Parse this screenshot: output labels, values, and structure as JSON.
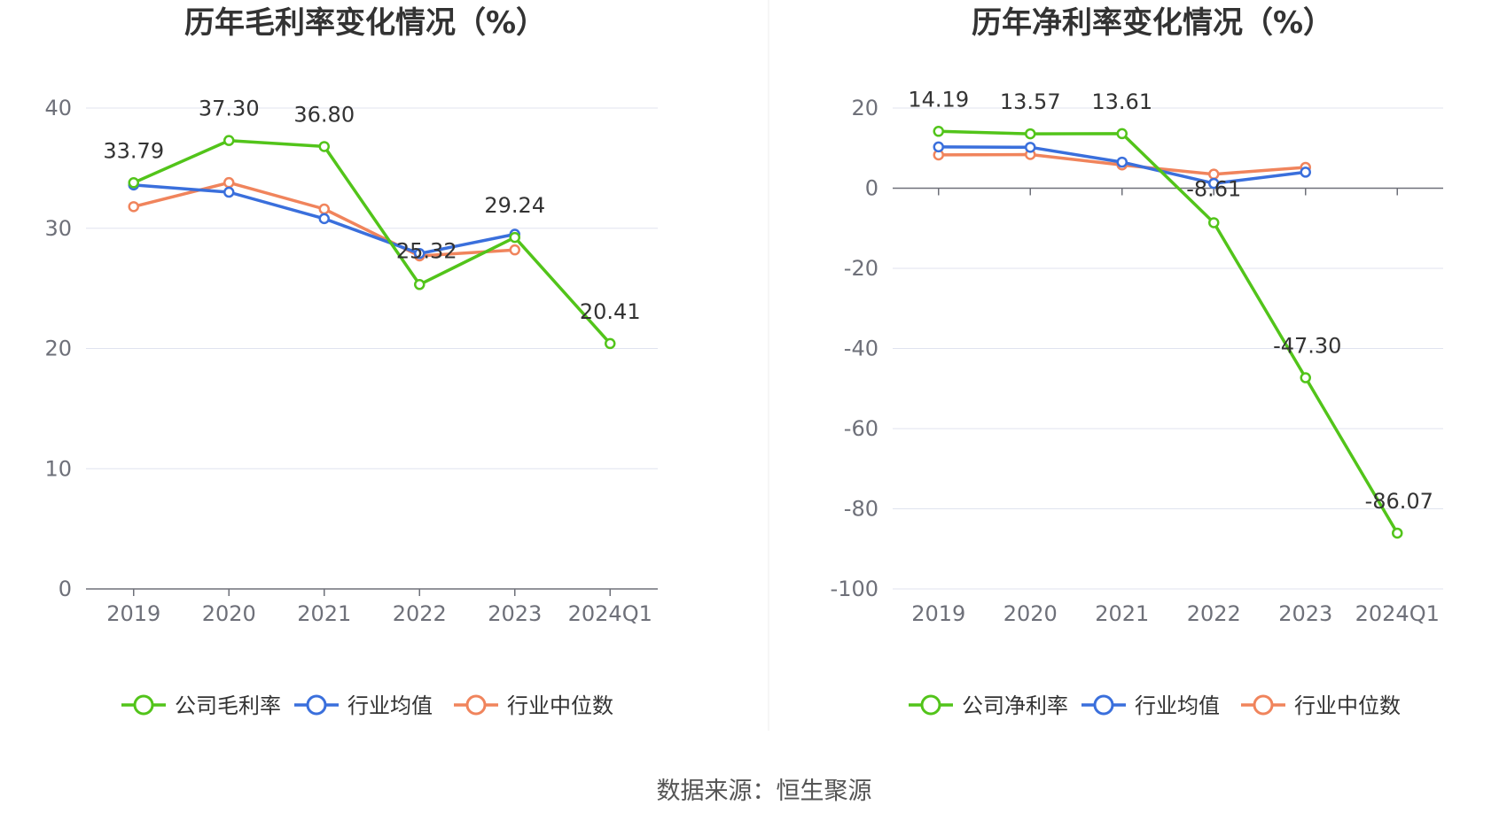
{
  "source": "数据来源：恒生聚源",
  "chart_data": [
    {
      "type": "line",
      "title": "历年毛利率变化情况（%）",
      "categories": [
        "2019",
        "2020",
        "2021",
        "2022",
        "2023",
        "2024Q1"
      ],
      "ylim": [
        0,
        40
      ],
      "yticks": [
        0,
        10,
        20,
        30,
        40
      ],
      "grid": true,
      "legend_position": "bottom",
      "series": [
        {
          "name": "公司毛利率",
          "color": "#52c41a",
          "values": [
            33.79,
            37.3,
            36.8,
            25.32,
            29.24,
            20.41
          ],
          "labels": [
            "33.79",
            "37.30",
            "36.80",
            "25.32",
            "29.24",
            "20.41"
          ]
        },
        {
          "name": "行业均值",
          "color": "#3a6fdc",
          "values": [
            33.6,
            33.0,
            30.8,
            27.9,
            29.5,
            null
          ]
        },
        {
          "name": "行业中位数",
          "color": "#f0845c",
          "values": [
            31.8,
            33.8,
            31.6,
            27.7,
            28.2,
            null
          ]
        }
      ]
    },
    {
      "type": "line",
      "title": "历年净利率变化情况（%）",
      "categories": [
        "2019",
        "2020",
        "2021",
        "2022",
        "2023",
        "2024Q1"
      ],
      "ylim": [
        -100,
        20
      ],
      "yticks": [
        -100,
        -80,
        -60,
        -40,
        -20,
        0,
        20
      ],
      "grid": true,
      "legend_position": "bottom",
      "series": [
        {
          "name": "公司净利率",
          "color": "#52c41a",
          "values": [
            14.19,
            13.57,
            13.61,
            -8.61,
            -47.3,
            -86.07
          ],
          "labels": [
            "14.19",
            "13.57",
            "13.61",
            "-8.61",
            "-47.30",
            "-86.07"
          ]
        },
        {
          "name": "行业均值",
          "color": "#3a6fdc",
          "values": [
            10.3,
            10.2,
            6.5,
            1.2,
            4.0,
            null
          ]
        },
        {
          "name": "行业中位数",
          "color": "#f0845c",
          "values": [
            8.3,
            8.4,
            5.8,
            3.5,
            5.2,
            null
          ]
        }
      ]
    }
  ]
}
